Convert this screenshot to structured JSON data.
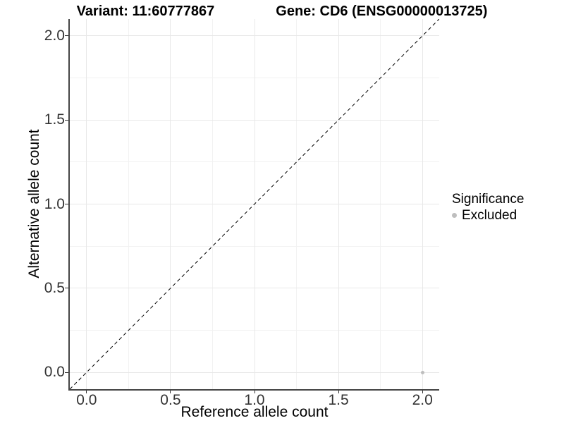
{
  "header": {
    "variant_title": "Variant: 11:60777867",
    "gene_title": "Gene: CD6 (ENSG00000013725)"
  },
  "legend": {
    "title": "Significance",
    "items": [
      {
        "label": "Excluded",
        "color": "#bebebe"
      }
    ]
  },
  "chart_data": {
    "type": "scatter",
    "title": "Variant: 11:60777867   Gene: CD6 (ENSG00000013725)",
    "xlabel": "Reference allele count",
    "ylabel": "Alternative allele count",
    "xlim": [
      -0.1,
      2.1
    ],
    "ylim": [
      -0.1,
      2.1
    ],
    "x_ticks": [
      0.0,
      0.5,
      1.0,
      1.5,
      2.0
    ],
    "y_ticks": [
      0.0,
      0.5,
      1.0,
      1.5,
      2.0
    ],
    "tick_decimals": 1,
    "grid": {
      "major": true,
      "minor": true
    },
    "reference_line": {
      "kind": "identity y=x",
      "style": "dashed",
      "color": "#000000"
    },
    "legend_position": "right",
    "series": [
      {
        "name": "Excluded",
        "color": "#bebebe",
        "points": [
          {
            "x": 2.0,
            "y": 0.0
          }
        ]
      }
    ]
  },
  "colors": {
    "background": "#ffffff",
    "grid_major": "#e8e8e8",
    "grid_minor": "#f2f2f2",
    "axis_line": "#464646",
    "tick_mark": "#333333",
    "tick_text": "#333333",
    "title_text": "#000000"
  }
}
